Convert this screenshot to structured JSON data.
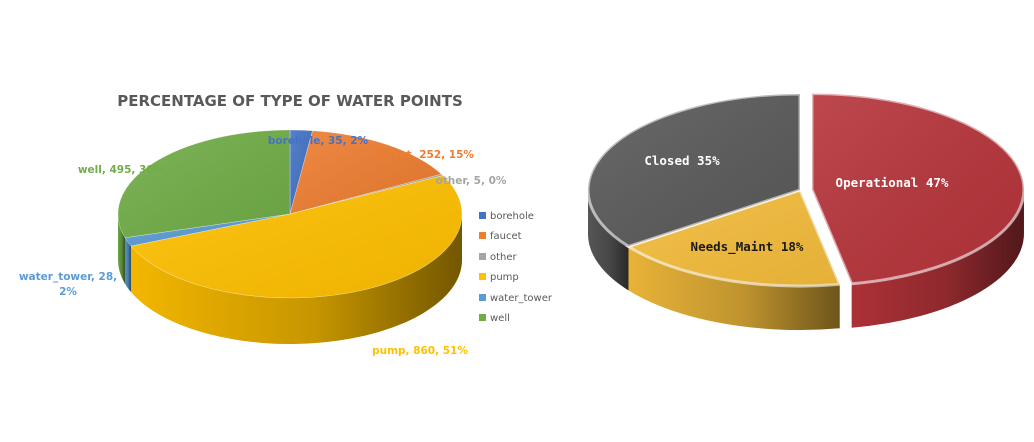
{
  "chart_data": [
    {
      "type": "pie",
      "title": "PERCENTAGE OF TYPE OF WATER POINTS",
      "legend_position": "right",
      "slices": [
        {
          "name": "borehole",
          "value": 35,
          "percent": "2%",
          "color": "#4472C4",
          "label": "borehole, 35, 2%"
        },
        {
          "name": "faucet",
          "value": 252,
          "percent": "15%",
          "color": "#ED7D31",
          "label": "faucet, 252, 15%"
        },
        {
          "name": "other",
          "value": 5,
          "percent": "0%",
          "color": "#A5A5A5",
          "label": "other, 5, 0%"
        },
        {
          "name": "pump",
          "value": 860,
          "percent": "51%",
          "color": "#FFC000",
          "label": "pump, 860, 51%"
        },
        {
          "name": "water_tower",
          "value": 28,
          "percent": "2%",
          "color": "#5B9BD5",
          "label_line1": "water_tower, 28,",
          "label_line2": "2%"
        },
        {
          "name": "well",
          "value": 495,
          "percent": "30%",
          "color": "#70AD47",
          "label": "well, 495, 30%"
        }
      ]
    },
    {
      "type": "pie",
      "title": "",
      "slices": [
        {
          "name": "Operational",
          "value": 47,
          "color": "#B5343A",
          "label": "Operational 47%"
        },
        {
          "name": "Needs_Maint",
          "value": 18,
          "color": "#F4BC3B",
          "label": "Needs_Maint 18%"
        },
        {
          "name": "Closed",
          "value": 35,
          "color": "#5A5A5A",
          "label": "Closed 35%"
        }
      ]
    }
  ]
}
